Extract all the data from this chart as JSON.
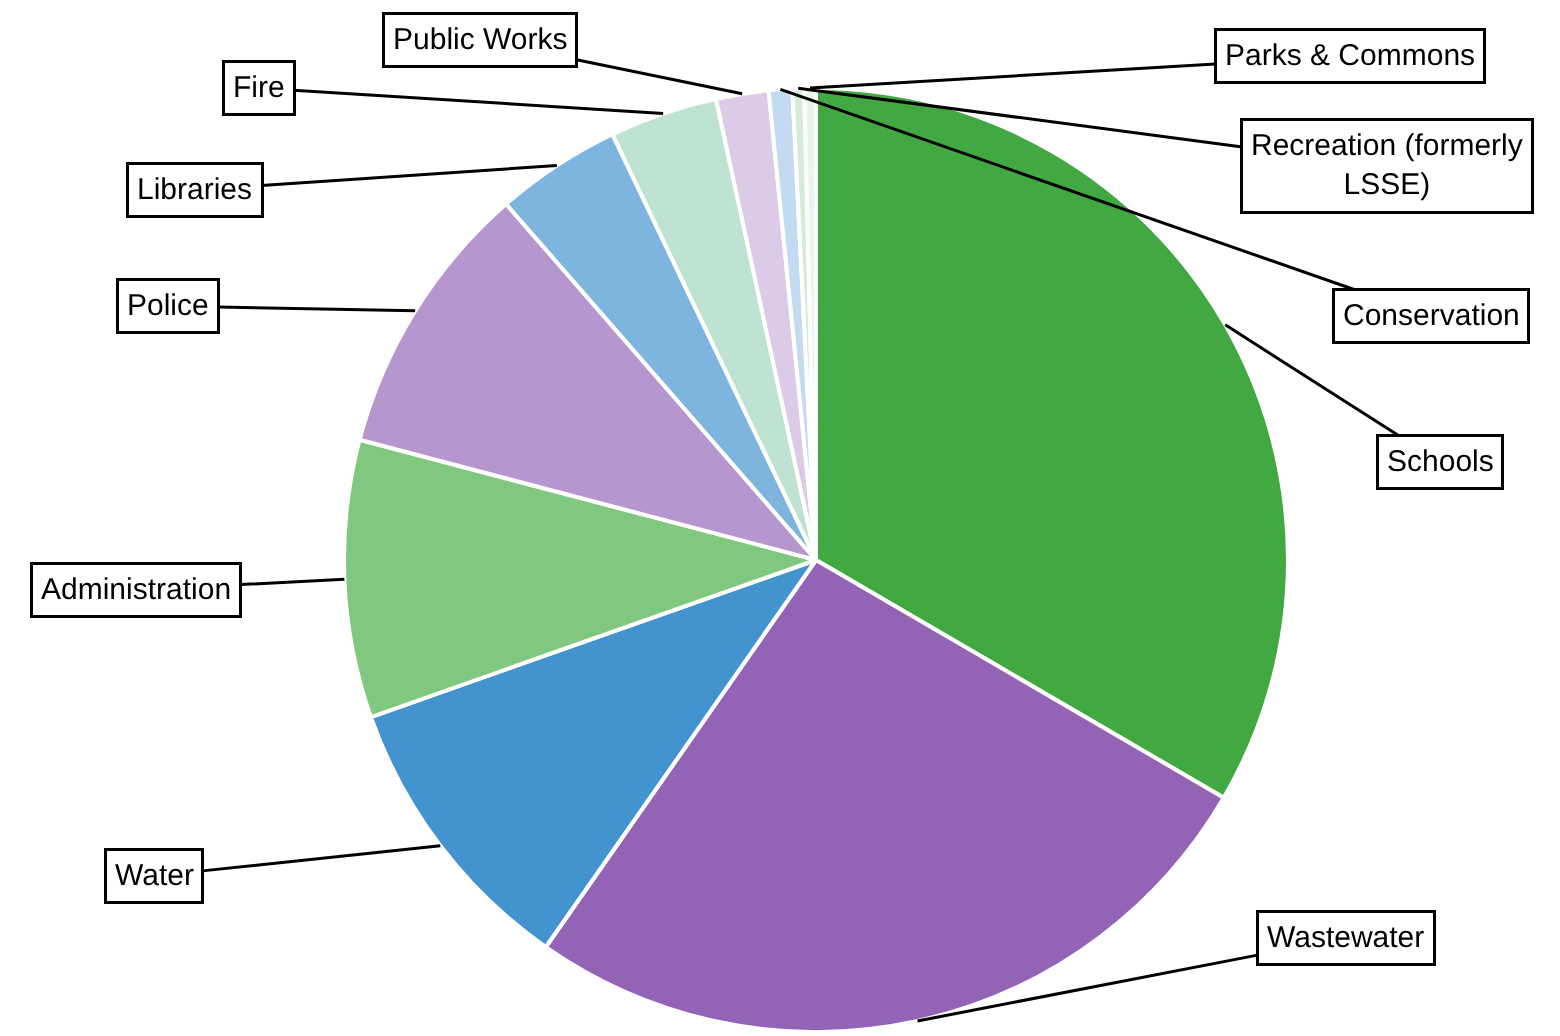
{
  "chart_data": {
    "type": "pie",
    "categories": [
      "Schools",
      "Wastewater",
      "Water",
      "Administration",
      "Police",
      "Libraries",
      "Fire",
      "Public Works",
      "Conservation",
      "Recreation (formerly LSSE)",
      "Parks & Commons"
    ],
    "values": [
      33.4,
      26.3,
      9.9,
      9.5,
      9.5,
      4.3,
      3.7,
      1.8,
      0.8,
      0.4,
      0.4
    ],
    "colors": [
      "#42a842",
      "#9364b6",
      "#4393cf",
      "#80c77f",
      "#b596cf",
      "#7eb5de",
      "#bfe3d3",
      "#dbcbe7",
      "#c2dbf0",
      "#d5ecd8",
      "#e9f4ea"
    ]
  }
}
